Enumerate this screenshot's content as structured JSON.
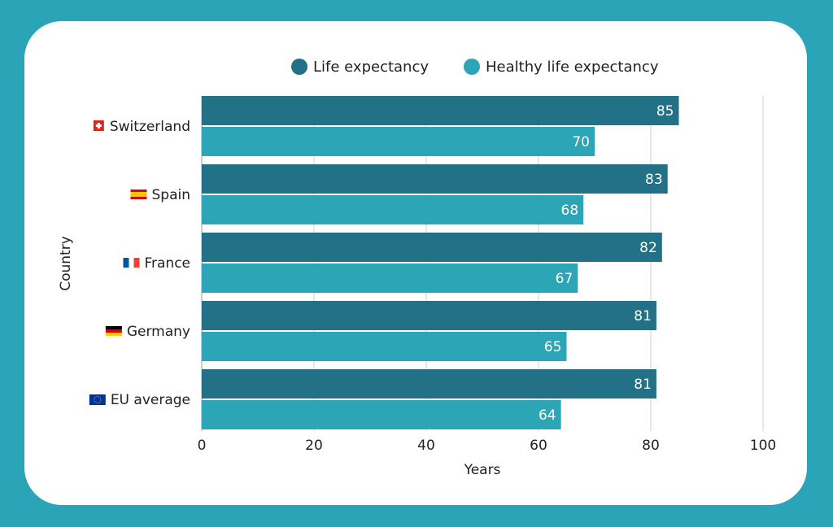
{
  "colors": {
    "background": "#2aa4b6",
    "life": "#237186",
    "healthy": "#2ca5b6"
  },
  "chart_data": {
    "type": "bar",
    "orientation": "horizontal",
    "categories": [
      "Switzerland",
      "Spain",
      "France",
      "Germany",
      "EU average"
    ],
    "category_flags": [
      "flag-switzerland-icon",
      "flag-spain-icon",
      "flag-france-icon",
      "flag-germany-icon",
      "flag-eu-icon"
    ],
    "series": [
      {
        "name": "Life expectancy",
        "values": [
          85,
          83,
          82,
          81,
          81
        ]
      },
      {
        "name": "Healthy life expectancy",
        "values": [
          70,
          68,
          67,
          65,
          64
        ]
      }
    ],
    "xlabel": "Years",
    "ylabel": "Country",
    "xlim": [
      0,
      100
    ],
    "xticks": [
      0,
      20,
      40,
      60,
      80,
      100
    ],
    "grid": true,
    "legend": "top"
  }
}
